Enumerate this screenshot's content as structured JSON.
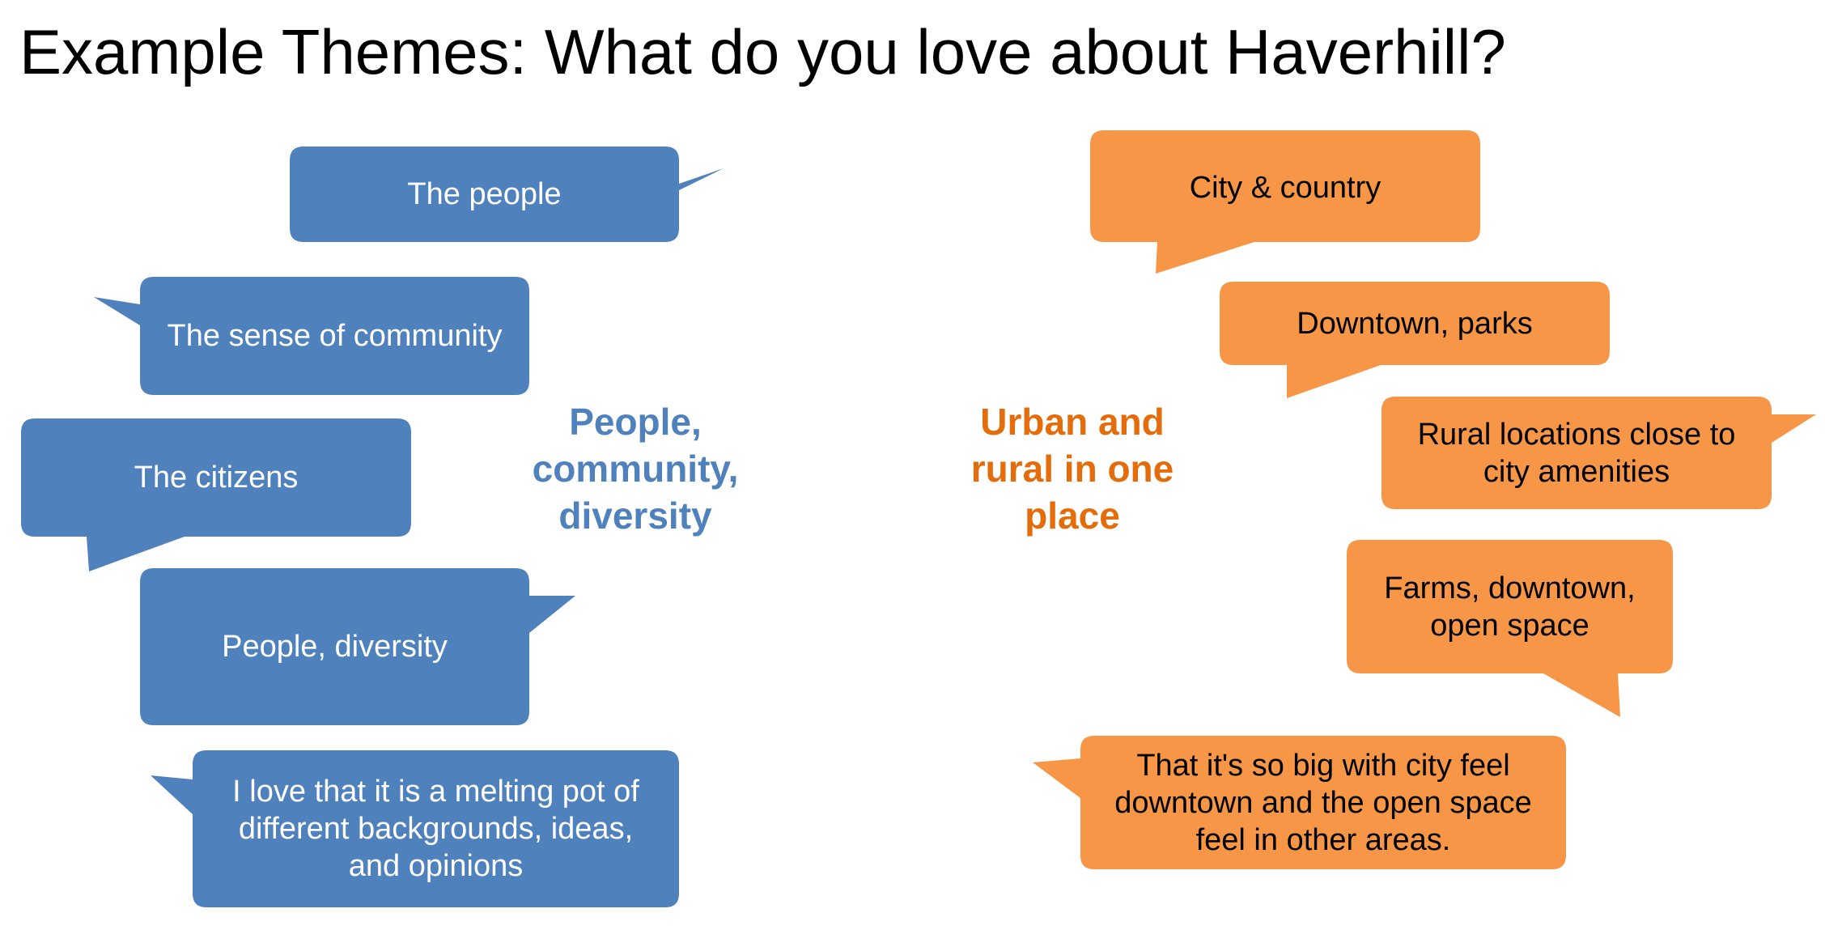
{
  "title": "Example Themes: What do you love about Haverhill?",
  "colors": {
    "blue_bubble": "#4f81bd",
    "orange_bubble": "#f79646",
    "blue_label": "#4f81bd",
    "orange_label": "#e46c0a"
  },
  "left_theme": {
    "label": [
      "People,",
      "community,",
      "diversity"
    ],
    "bubbles": [
      {
        "text": [
          "The people"
        ]
      },
      {
        "text": [
          "The sense of community"
        ]
      },
      {
        "text": [
          "The citizens"
        ]
      },
      {
        "text": [
          "People, diversity"
        ]
      },
      {
        "text": [
          "I love that it is a melting pot of",
          "different backgrounds, ideas,",
          "and opinions"
        ]
      }
    ]
  },
  "right_theme": {
    "label": [
      "Urban and",
      "rural in one",
      "place"
    ],
    "bubbles": [
      {
        "text": [
          "City & country"
        ]
      },
      {
        "text": [
          "Downtown, parks"
        ]
      },
      {
        "text": [
          "Rural locations close to",
          "city amenities"
        ]
      },
      {
        "text": [
          "Farms, downtown,",
          "open space"
        ]
      },
      {
        "text": [
          "That it's so big with city feel",
          "downtown and the open space",
          "feel in other areas."
        ]
      }
    ]
  }
}
